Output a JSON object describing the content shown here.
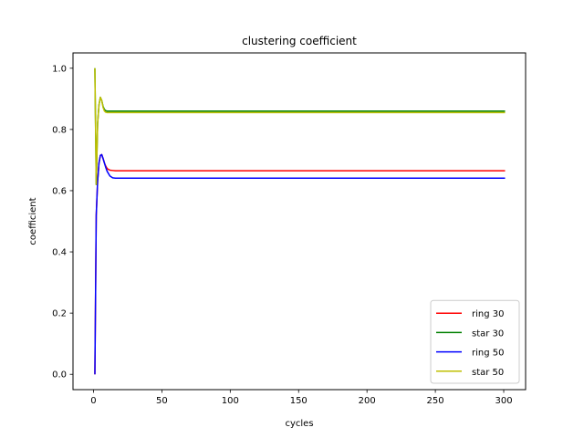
{
  "chart_data": {
    "type": "line",
    "title": "clustering coefficient",
    "xlabel": "cycles",
    "ylabel": "coefficient",
    "xlim": [
      -15,
      316
    ],
    "ylim": [
      -0.05,
      1.05
    ],
    "xticks": [
      0,
      50,
      100,
      150,
      200,
      250,
      300
    ],
    "yticks": [
      0.0,
      0.2,
      0.4,
      0.6,
      0.8,
      1.0
    ],
    "ytick_labels": [
      "0.0",
      "0.2",
      "0.4",
      "0.6",
      "0.8",
      "1.0"
    ],
    "grid": false,
    "legend_position": "lower-right",
    "series": [
      {
        "name": "ring 30",
        "color": "#ff0000",
        "x": [
          1,
          2,
          3,
          4,
          5,
          6,
          7,
          8,
          9,
          10,
          12,
          14,
          16,
          20,
          30,
          50,
          100,
          150,
          200,
          250,
          301
        ],
        "y": [
          0.0,
          0.52,
          0.63,
          0.69,
          0.715,
          0.718,
          0.705,
          0.69,
          0.68,
          0.672,
          0.667,
          0.666,
          0.665,
          0.665,
          0.665,
          0.665,
          0.665,
          0.665,
          0.665,
          0.665,
          0.665
        ]
      },
      {
        "name": "star 30",
        "color": "#008000",
        "x": [
          1,
          2,
          3,
          4,
          5,
          6,
          7,
          8,
          9,
          10,
          12,
          14,
          16,
          20,
          30,
          50,
          100,
          150,
          200,
          250,
          301
        ],
        "y": [
          1.0,
          0.62,
          0.82,
          0.88,
          0.905,
          0.895,
          0.875,
          0.865,
          0.861,
          0.86,
          0.86,
          0.86,
          0.86,
          0.86,
          0.86,
          0.86,
          0.86,
          0.86,
          0.86,
          0.86,
          0.86
        ]
      },
      {
        "name": "ring 50",
        "color": "#0000ff",
        "x": [
          1,
          2,
          3,
          4,
          5,
          6,
          7,
          8,
          9,
          10,
          12,
          14,
          16,
          20,
          30,
          50,
          100,
          150,
          200,
          250,
          301
        ],
        "y": [
          0.0,
          0.52,
          0.63,
          0.69,
          0.715,
          0.718,
          0.705,
          0.69,
          0.675,
          0.663,
          0.648,
          0.642,
          0.641,
          0.641,
          0.641,
          0.641,
          0.641,
          0.641,
          0.641,
          0.641,
          0.641
        ]
      },
      {
        "name": "star 50",
        "color": "#bfbf00",
        "x": [
          1,
          2,
          3,
          4,
          5,
          6,
          7,
          8,
          9,
          10,
          12,
          14,
          16,
          20,
          30,
          50,
          100,
          150,
          200,
          250,
          301
        ],
        "y": [
          1.0,
          0.62,
          0.82,
          0.88,
          0.905,
          0.895,
          0.872,
          0.86,
          0.856,
          0.855,
          0.855,
          0.855,
          0.855,
          0.855,
          0.855,
          0.855,
          0.855,
          0.855,
          0.855,
          0.855,
          0.855
        ]
      }
    ]
  }
}
